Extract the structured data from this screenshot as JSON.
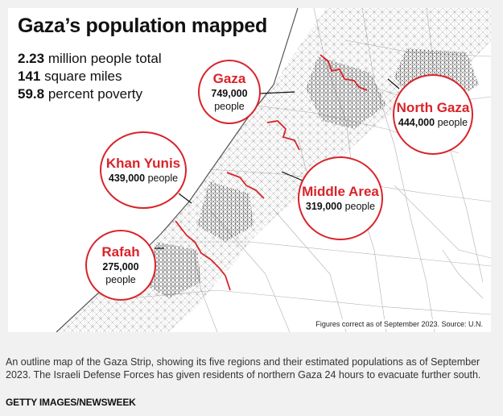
{
  "title": "Gaza’s population mapped",
  "stats": [
    {
      "value": "2.23",
      "label": "million people total"
    },
    {
      "value": "141",
      "label": "square miles"
    },
    {
      "value": "59.8",
      "label": "percent poverty"
    }
  ],
  "regions": [
    {
      "name": "Gaza",
      "population": "749,000",
      "unit": "people"
    },
    {
      "name": "North Gaza",
      "population": "444,000",
      "unit": "people"
    },
    {
      "name": "Khan Yunis",
      "population": "439,000",
      "unit": "people"
    },
    {
      "name": "Middle Area",
      "population": "319,000",
      "unit": "people"
    },
    {
      "name": "Rafah",
      "population": "275,000",
      "unit": "people"
    }
  ],
  "source_note": "Figures correct as of September 2023. Source: U.N.",
  "caption": "An outline map of the Gaza Strip, showing its five regions and their estimated populations as of September 2023. The Israeli Defense Forces has given residents of northern Gaza 24 hours to evacuate further south.",
  "credit": "GETTY IMAGES/NEWSWEEK",
  "colors": {
    "accent": "#d9232a",
    "roads": "#9a9a9a",
    "dense": "#555555"
  }
}
